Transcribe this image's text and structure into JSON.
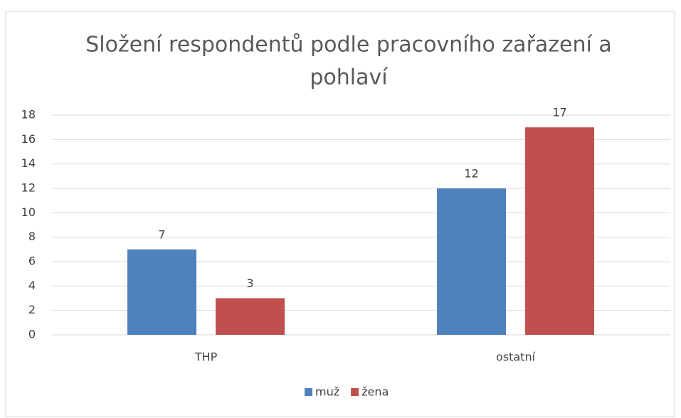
{
  "chart_data": {
    "type": "bar",
    "title": [
      "Složení respondentů podle pracovního zařazení a",
      "pohlaví"
    ],
    "categories": [
      "THP",
      "ostatní"
    ],
    "series": [
      {
        "name": "muž",
        "color": "#4f81bd",
        "values": [
          7,
          12
        ]
      },
      {
        "name": "žena",
        "color": "#c0504d",
        "values": [
          3,
          17
        ]
      }
    ],
    "ylim": [
      0,
      18
    ],
    "yticks": [
      0,
      2,
      4,
      6,
      8,
      10,
      12,
      14,
      16,
      18
    ],
    "grid": true,
    "legend": "bottom"
  }
}
